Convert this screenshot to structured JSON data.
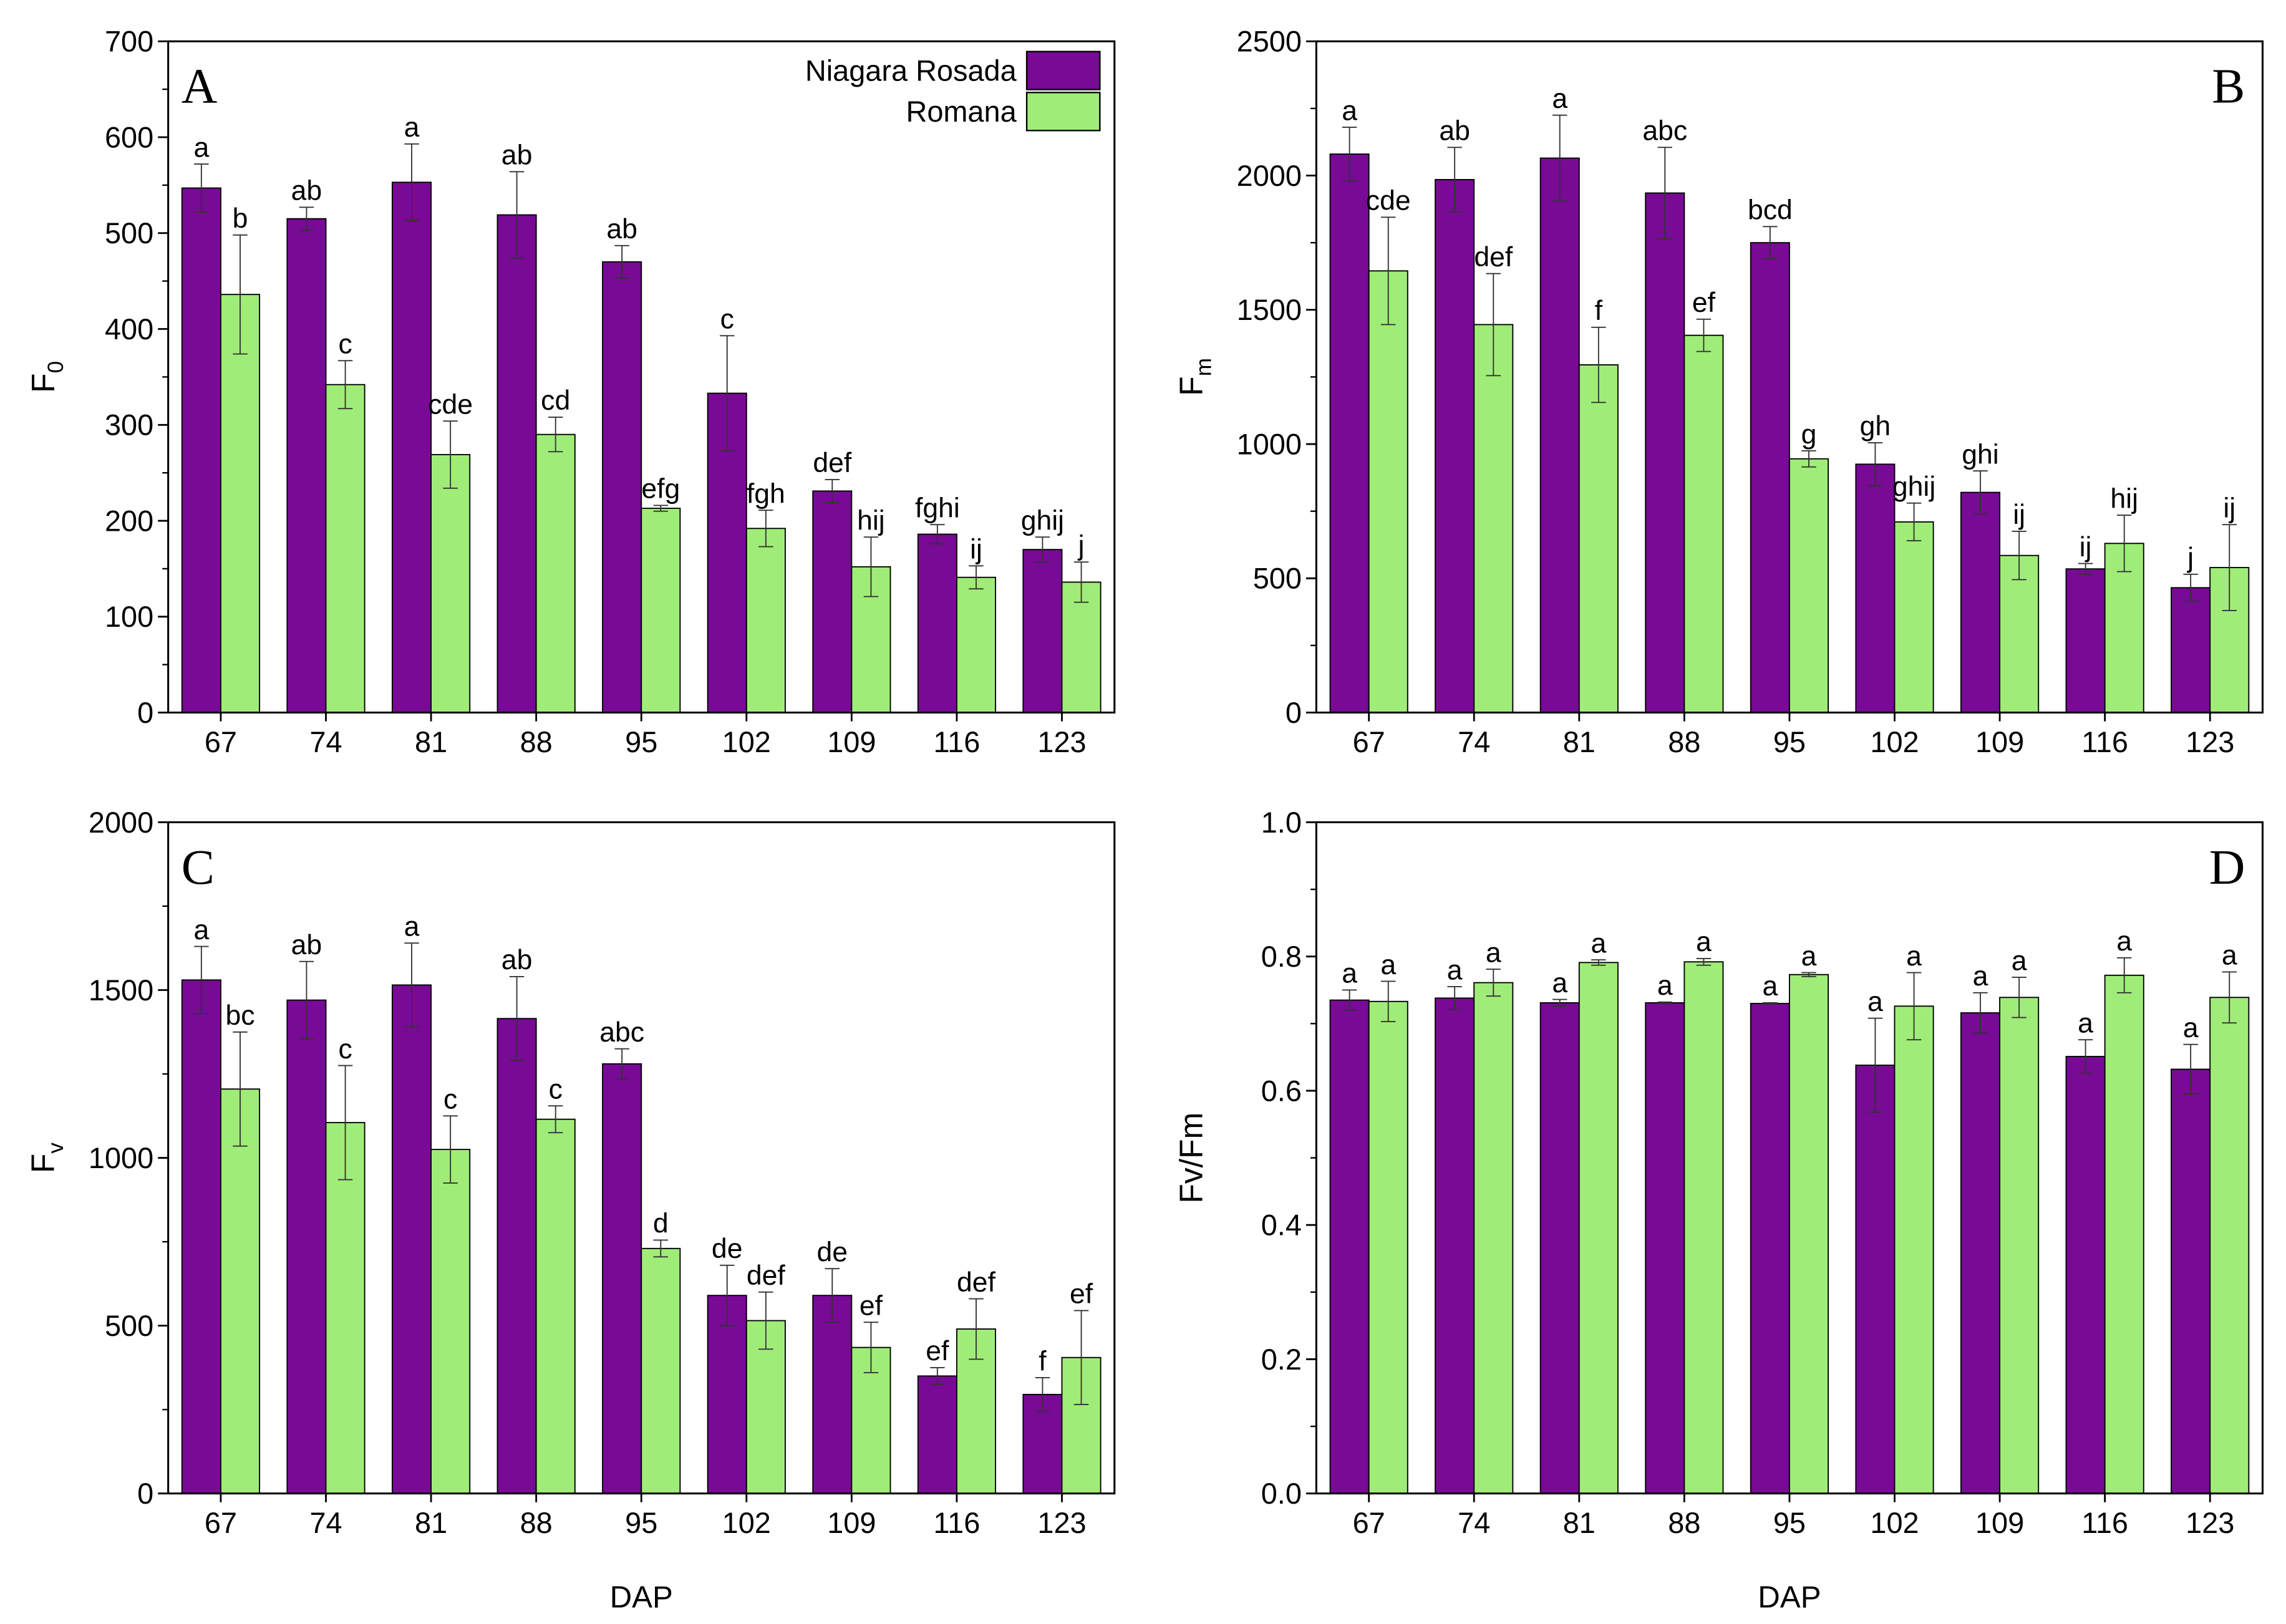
{
  "colors": {
    "Niagara Rosada": "#780a96",
    "Romana": "#a0ec78",
    "axis": "#000000"
  },
  "legend": {
    "placement": "top-right",
    "entries": [
      "Niagara Rosada",
      "Romana"
    ]
  },
  "chart_data": [
    {
      "panel": "A",
      "type": "bar",
      "ylabel": "F",
      "ylabel_sub": "0",
      "xlabel": "",
      "categories": [
        "67",
        "74",
        "81",
        "88",
        "95",
        "102",
        "109",
        "116",
        "123"
      ],
      "ylim": [
        0,
        700
      ],
      "yticks": [
        0,
        100,
        200,
        300,
        400,
        500,
        600,
        700
      ],
      "series": [
        {
          "name": "Niagara Rosada",
          "values": [
            547,
            515,
            553,
            519,
            470,
            333,
            231,
            186,
            170
          ],
          "errors": [
            25,
            12,
            40,
            45,
            17,
            60,
            12,
            10,
            13
          ],
          "letters": [
            "a",
            "ab",
            "a",
            "ab",
            "ab",
            "c",
            "def",
            "fghi",
            "ghij"
          ]
        },
        {
          "name": "Romana",
          "values": [
            436,
            342,
            269,
            290,
            213,
            192,
            152,
            141,
            136
          ],
          "errors": [
            62,
            25,
            35,
            18,
            3,
            19,
            31,
            12,
            21
          ],
          "letters": [
            "b",
            "c",
            "cde",
            "cd",
            "efg",
            "fgh",
            "hij",
            "ij",
            "j"
          ]
        }
      ]
    },
    {
      "panel": "B",
      "type": "bar",
      "ylabel": "F",
      "ylabel_sub": "m",
      "xlabel": "",
      "categories": [
        "67",
        "74",
        "81",
        "88",
        "95",
        "102",
        "109",
        "116",
        "123"
      ],
      "ylim": [
        0,
        2500
      ],
      "yticks": [
        0,
        500,
        1000,
        1500,
        2000,
        2500
      ],
      "series": [
        {
          "name": "Niagara Rosada",
          "values": [
            2080,
            1985,
            2065,
            1935,
            1750,
            925,
            820,
            535,
            465
          ],
          "errors": [
            100,
            120,
            160,
            170,
            60,
            80,
            80,
            20,
            50
          ],
          "letters": [
            "a",
            "ab",
            "a",
            "abc",
            "bcd",
            "gh",
            "ghi",
            "ij",
            "j"
          ]
        },
        {
          "name": "Romana",
          "values": [
            1645,
            1445,
            1295,
            1405,
            945,
            710,
            585,
            630,
            540
          ],
          "errors": [
            200,
            190,
            140,
            60,
            30,
            70,
            90,
            105,
            160
          ],
          "letters": [
            "cde",
            "def",
            "f",
            "ef",
            "g",
            "ghij",
            "ij",
            "hij",
            "ij"
          ]
        }
      ]
    },
    {
      "panel": "C",
      "type": "bar",
      "ylabel": "F",
      "ylabel_sub": "v",
      "xlabel": "DAP",
      "categories": [
        "67",
        "74",
        "81",
        "88",
        "95",
        "102",
        "109",
        "116",
        "123"
      ],
      "ylim": [
        0,
        2000
      ],
      "yticks": [
        0,
        500,
        1000,
        1500,
        2000
      ],
      "series": [
        {
          "name": "Niagara Rosada",
          "values": [
            1530,
            1470,
            1515,
            1415,
            1280,
            590,
            590,
            350,
            295
          ],
          "errors": [
            100,
            115,
            125,
            125,
            45,
            90,
            80,
            25,
            50
          ],
          "letters": [
            "a",
            "ab",
            "a",
            "ab",
            "abc",
            "de",
            "de",
            "ef",
            "f"
          ]
        },
        {
          "name": "Romana",
          "values": [
            1205,
            1105,
            1025,
            1115,
            730,
            515,
            435,
            490,
            405
          ],
          "errors": [
            170,
            170,
            100,
            40,
            25,
            85,
            75,
            90,
            140
          ],
          "letters": [
            "bc",
            "c",
            "c",
            "c",
            "d",
            "def",
            "ef",
            "def",
            "ef"
          ]
        }
      ]
    },
    {
      "panel": "D",
      "type": "bar",
      "ylabel": "Fv/Fm",
      "ylabel_sub": "",
      "xlabel": "DAP",
      "categories": [
        "67",
        "74",
        "81",
        "88",
        "95",
        "102",
        "109",
        "116",
        "123"
      ],
      "ylim": [
        0,
        1.0
      ],
      "yticks": [
        "0.0",
        "0.2",
        "0.4",
        "0.6",
        "0.8",
        "1.0"
      ],
      "series": [
        {
          "name": "Niagara Rosada",
          "values": [
            0.735,
            0.738,
            0.731,
            0.731,
            0.73,
            0.638,
            0.716,
            0.651,
            0.632
          ],
          "errors": [
            0.015,
            0.017,
            0.005,
            0.001,
            0.001,
            0.07,
            0.03,
            0.025,
            0.037
          ],
          "letters": [
            "a",
            "a",
            "a",
            "a",
            "a",
            "a",
            "a",
            "a",
            "a"
          ]
        },
        {
          "name": "Romana",
          "values": [
            0.733,
            0.761,
            0.791,
            0.792,
            0.773,
            0.726,
            0.739,
            0.772,
            0.739
          ],
          "errors": [
            0.03,
            0.02,
            0.004,
            0.005,
            0.003,
            0.05,
            0.03,
            0.026,
            0.038
          ],
          "letters": [
            "a",
            "a",
            "a",
            "a",
            "a",
            "a",
            "a",
            "a",
            "a"
          ]
        }
      ]
    }
  ]
}
